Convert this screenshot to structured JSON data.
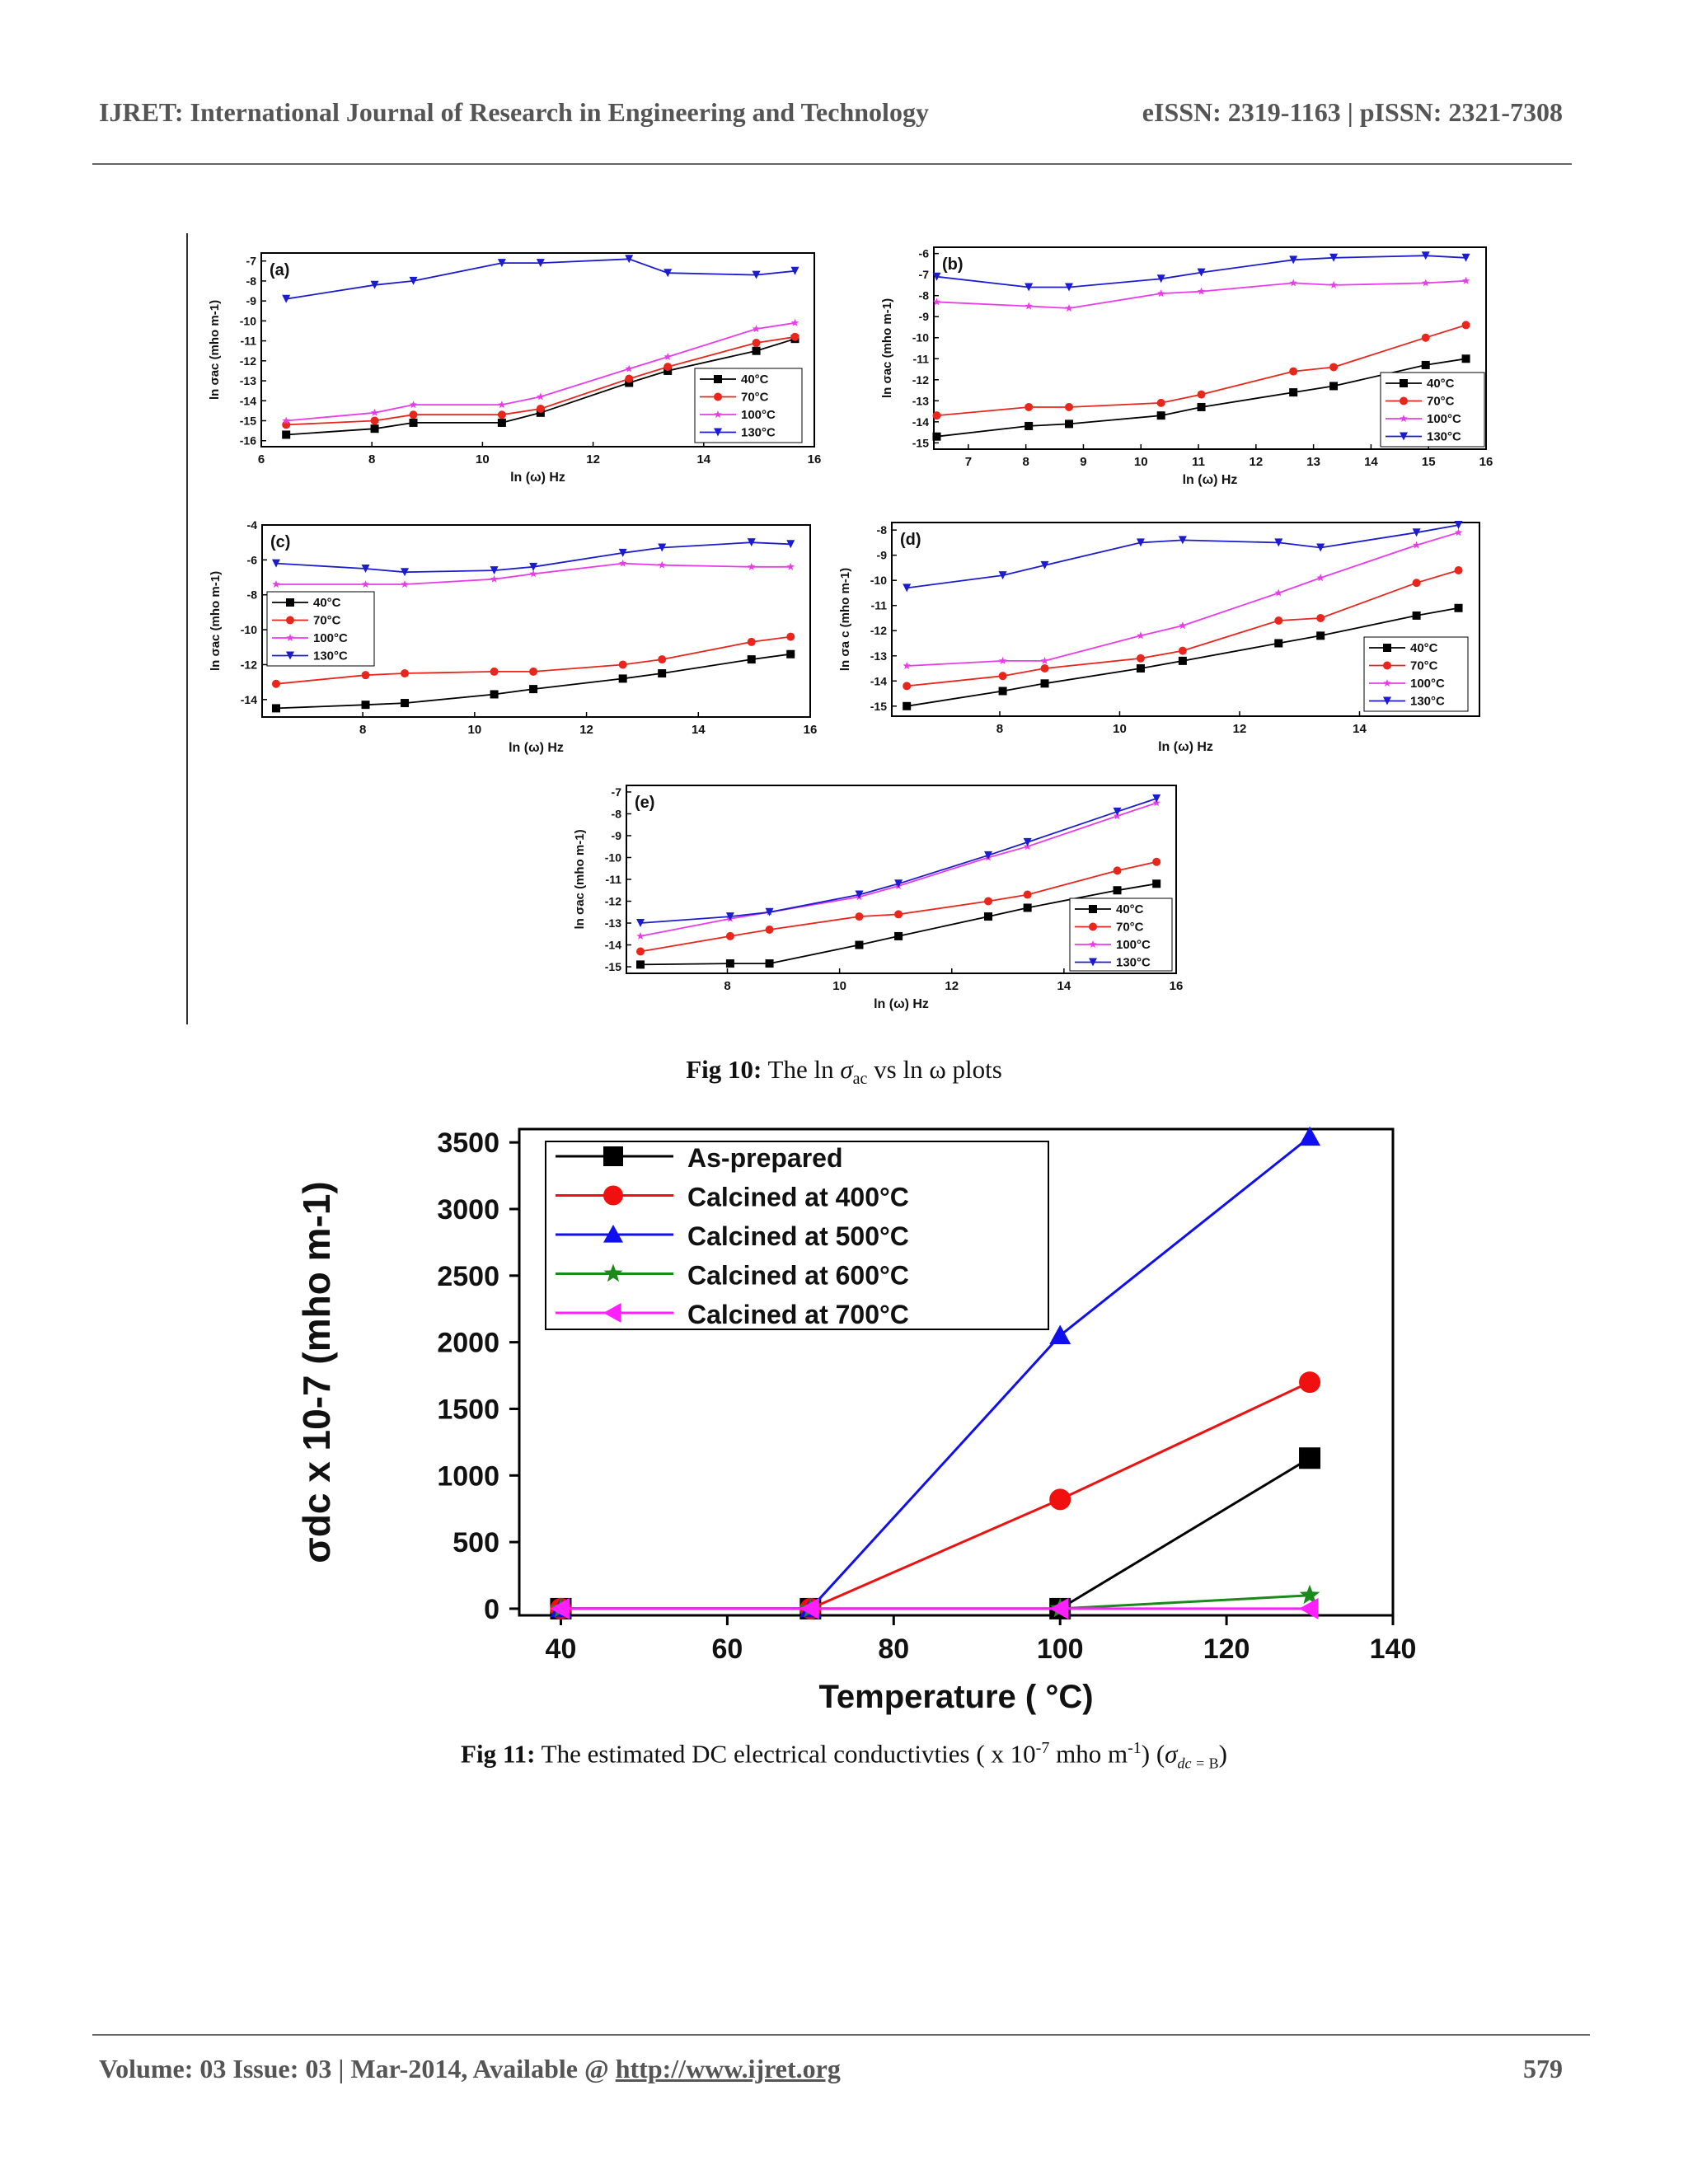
{
  "header": {
    "journal": "IJRET: International Journal of Research in Engineering and Technology",
    "issn": "eISSN: 2319-1163 | pISSN: 2321-7308"
  },
  "footer": {
    "volume": "Volume: 03 Issue: 03 | Mar-2014, Available @",
    "url": "http://www.ijret.org",
    "page": "579"
  },
  "captions": {
    "fig10_label": "Fig 10:",
    "fig10_text_a": "The ln ",
    "fig10_sigma": "σ",
    "fig10_sub": "ac",
    "fig10_text_b": " vs ln ω plots",
    "fig11_label": "Fig 11:",
    "fig11_text_a": "The estimated DC electrical conductivties ( x 10",
    "fig11_sup1": "-7",
    "fig11_text_b": " mho m",
    "fig11_sup2": "-1",
    "fig11_text_c": ")  (",
    "fig11_sigma": "σ",
    "fig11_sub": "dc = ",
    "fig11_b": "B",
    "fig11_close": ")"
  },
  "chart_data": [
    {
      "type": "line",
      "panel": "(a)",
      "xlabel": "ln (ω) Hz",
      "ylabel": "ln σac (mho m-1)",
      "xlim": [
        6,
        16
      ],
      "ylim": [
        -16.3,
        -6.6
      ],
      "xticks": [
        6,
        8,
        10,
        12,
        14,
        16
      ],
      "yticks": [
        -16,
        -15,
        -14,
        -13,
        -12,
        -11,
        -10,
        -9,
        -8,
        -7
      ],
      "legend_position": "bottom-right",
      "x": [
        6.45,
        8.05,
        8.75,
        10.35,
        11.05,
        12.65,
        13.35,
        14.95,
        15.65
      ],
      "series": [
        {
          "name": "40°C",
          "color": "#000000",
          "marker": "square",
          "values": [
            -15.7,
            -15.4,
            -15.1,
            -15.1,
            -14.6,
            -13.1,
            -12.5,
            -11.5,
            -10.9
          ]
        },
        {
          "name": "70°C",
          "color": "#e8261c",
          "marker": "circle",
          "values": [
            -15.2,
            -15.0,
            -14.7,
            -14.7,
            -14.4,
            -12.9,
            -12.3,
            -11.1,
            -10.8
          ]
        },
        {
          "name": "100°C",
          "color": "#e93ce9",
          "marker": "star",
          "values": [
            -15.0,
            -14.6,
            -14.2,
            -14.2,
            -13.8,
            -12.4,
            -11.8,
            -10.4,
            -10.1
          ]
        },
        {
          "name": "130°C",
          "color": "#1c1ccf",
          "marker": "triangle-down",
          "values": [
            -8.9,
            -8.2,
            -8.0,
            -7.1,
            -7.1,
            -6.9,
            -7.6,
            -7.7,
            -7.5
          ]
        }
      ]
    },
    {
      "type": "line",
      "panel": "(b)",
      "xlabel": "ln (ω) Hz",
      "ylabel": "ln σac (mho m-1)",
      "xlim": [
        6.4,
        16
      ],
      "ylim": [
        -15.3,
        -5.7
      ],
      "xticks": [
        7,
        8,
        9,
        10,
        11,
        12,
        13,
        14,
        15,
        16
      ],
      "yticks": [
        -15,
        -14,
        -13,
        -12,
        -11,
        -10,
        -9,
        -8,
        -7,
        -6
      ],
      "legend_position": "bottom-right",
      "x": [
        6.45,
        8.05,
        8.75,
        10.35,
        11.05,
        12.65,
        13.35,
        14.95,
        15.65
      ],
      "series": [
        {
          "name": "40°C",
          "color": "#000000",
          "marker": "square",
          "values": [
            -14.7,
            -14.2,
            -14.1,
            -13.7,
            -13.3,
            -12.6,
            -12.3,
            -11.3,
            -11.0
          ]
        },
        {
          "name": "70°C",
          "color": "#e8261c",
          "marker": "circle",
          "values": [
            -13.7,
            -13.3,
            -13.3,
            -13.1,
            -12.7,
            -11.6,
            -11.4,
            -10.0,
            -9.4
          ]
        },
        {
          "name": "100°C",
          "color": "#e93ce9",
          "marker": "star",
          "values": [
            -8.3,
            -8.5,
            -8.6,
            -7.9,
            -7.8,
            -7.4,
            -7.5,
            -7.4,
            -7.3
          ]
        },
        {
          "name": "130°C",
          "color": "#1c1ccf",
          "marker": "triangle-down",
          "values": [
            -7.1,
            -7.6,
            -7.6,
            -7.2,
            -6.9,
            -6.3,
            -6.2,
            -6.1,
            -6.2
          ]
        }
      ]
    },
    {
      "type": "line",
      "panel": "(c)",
      "xlabel": "ln (ω) Hz",
      "ylabel": "ln σac (mho m-1)",
      "xlim": [
        6.2,
        16
      ],
      "ylim": [
        -15.0,
        -4.0
      ],
      "xticks": [
        8,
        10,
        12,
        14,
        16
      ],
      "yticks": [
        -14,
        -12,
        -10,
        -8,
        -6,
        -4
      ],
      "legend_position": "left",
      "x": [
        6.45,
        8.05,
        8.75,
        10.35,
        11.05,
        12.65,
        13.35,
        14.95,
        15.65
      ],
      "series": [
        {
          "name": "40°C",
          "color": "#000000",
          "marker": "square",
          "values": [
            -14.5,
            -14.3,
            -14.2,
            -13.7,
            -13.4,
            -12.8,
            -12.5,
            -11.7,
            -11.4
          ]
        },
        {
          "name": "70°C",
          "color": "#e8261c",
          "marker": "circle",
          "values": [
            -13.1,
            -12.6,
            -12.5,
            -12.4,
            -12.4,
            -12.0,
            -11.7,
            -10.7,
            -10.4
          ]
        },
        {
          "name": "100°C",
          "color": "#e93ce9",
          "marker": "star",
          "values": [
            -7.4,
            -7.4,
            -7.4,
            -7.1,
            -6.8,
            -6.2,
            -6.3,
            -6.4,
            -6.4
          ]
        },
        {
          "name": "130°C",
          "color": "#1c1ccf",
          "marker": "triangle-down",
          "values": [
            -6.2,
            -6.5,
            -6.7,
            -6.6,
            -6.4,
            -5.6,
            -5.3,
            -5.0,
            -5.1
          ]
        }
      ]
    },
    {
      "type": "line",
      "panel": "(d)",
      "xlabel": "ln (ω) Hz",
      "ylabel": "ln σa c (mho m-1)",
      "xlim": [
        6.2,
        16
      ],
      "ylim": [
        -15.4,
        -7.7
      ],
      "xticks": [
        8,
        10,
        12,
        14
      ],
      "yticks": [
        -15,
        -14,
        -13,
        -12,
        -11,
        -10,
        -9,
        -8
      ],
      "legend_position": "bottom-right",
      "x": [
        6.45,
        8.05,
        8.75,
        10.35,
        11.05,
        12.65,
        13.35,
        14.95,
        15.65
      ],
      "series": [
        {
          "name": "40°C",
          "color": "#000000",
          "marker": "square",
          "values": [
            -15.0,
            -14.4,
            -14.1,
            -13.5,
            -13.2,
            -12.5,
            -12.2,
            -11.4,
            -11.1
          ]
        },
        {
          "name": "70°C",
          "color": "#e8261c",
          "marker": "circle",
          "values": [
            -14.2,
            -13.8,
            -13.5,
            -13.1,
            -12.8,
            -11.6,
            -11.5,
            -10.1,
            -9.6
          ]
        },
        {
          "name": "100°C",
          "color": "#e93ce9",
          "marker": "star",
          "values": [
            -13.4,
            -13.2,
            -13.2,
            -12.2,
            -11.8,
            -10.5,
            -9.9,
            -8.6,
            -8.1
          ]
        },
        {
          "name": "130°C",
          "color": "#1c1ccf",
          "marker": "triangle-down",
          "values": [
            -10.3,
            -9.8,
            -9.4,
            -8.5,
            -8.4,
            -8.5,
            -8.7,
            -8.1,
            -7.8
          ]
        }
      ]
    },
    {
      "type": "line",
      "panel": "(e)",
      "xlabel": "ln (ω) Hz",
      "ylabel": "ln σac (mho m-1)",
      "xlim": [
        6.2,
        16
      ],
      "ylim": [
        -15.3,
        -6.7
      ],
      "xticks": [
        8,
        10,
        12,
        14,
        16
      ],
      "yticks": [
        -15,
        -14,
        -13,
        -12,
        -11,
        -10,
        -9,
        -8,
        -7
      ],
      "legend_position": "bottom-right",
      "x": [
        6.45,
        8.05,
        8.75,
        10.35,
        11.05,
        12.65,
        13.35,
        14.95,
        15.65
      ],
      "series": [
        {
          "name": "40°C",
          "color": "#000000",
          "marker": "square",
          "values": [
            -14.9,
            -14.85,
            -14.85,
            -14.0,
            -13.6,
            -12.7,
            -12.3,
            -11.5,
            -11.2
          ]
        },
        {
          "name": "70°C",
          "color": "#e8261c",
          "marker": "circle",
          "values": [
            -14.3,
            -13.6,
            -13.3,
            -12.7,
            -12.6,
            -12.0,
            -11.7,
            -10.6,
            -10.2
          ]
        },
        {
          "name": "100°C",
          "color": "#e93ce9",
          "marker": "star",
          "values": [
            -13.6,
            -12.8,
            -12.5,
            -11.8,
            -11.3,
            -10.0,
            -9.5,
            -8.1,
            -7.5
          ]
        },
        {
          "name": "130°C",
          "color": "#1c1ccf",
          "marker": "triangle-down",
          "values": [
            -13.0,
            -12.7,
            -12.5,
            -11.7,
            -11.2,
            -9.9,
            -9.3,
            -7.9,
            -7.3
          ]
        }
      ]
    },
    {
      "type": "line",
      "panel": "Fig 11",
      "xlabel": "Temperature ( °C)",
      "ylabel": "σdc x 10-7 (mho m-1)",
      "xlim": [
        35,
        140
      ],
      "ylim": [
        -50,
        3600
      ],
      "xticks": [
        40,
        60,
        80,
        100,
        120,
        140
      ],
      "yticks": [
        0,
        500,
        1000,
        1500,
        2000,
        2500,
        3000,
        3500
      ],
      "legend_position": "top-left",
      "x": [
        40,
        70,
        100,
        130
      ],
      "series": [
        {
          "name": "As-prepared",
          "color": "#000000",
          "marker": "square",
          "values": [
            0,
            0,
            0,
            1130
          ]
        },
        {
          "name": "Calcined at 400°C",
          "color": "#f01010",
          "marker": "circle",
          "values": [
            0,
            0,
            820,
            1700
          ]
        },
        {
          "name": "Calcined at 500°C",
          "color": "#1010ee",
          "marker": "triangle-up",
          "values": [
            0,
            0,
            2050,
            3540
          ]
        },
        {
          "name": "Calcined at 600°C",
          "color": "#1a8a1a",
          "marker": "star",
          "values": [
            0,
            0,
            0,
            100
          ]
        },
        {
          "name": "Calcined at 700°C",
          "color": "#ff20ff",
          "marker": "triangle-left",
          "values": [
            0,
            0,
            0,
            0
          ]
        }
      ]
    }
  ]
}
